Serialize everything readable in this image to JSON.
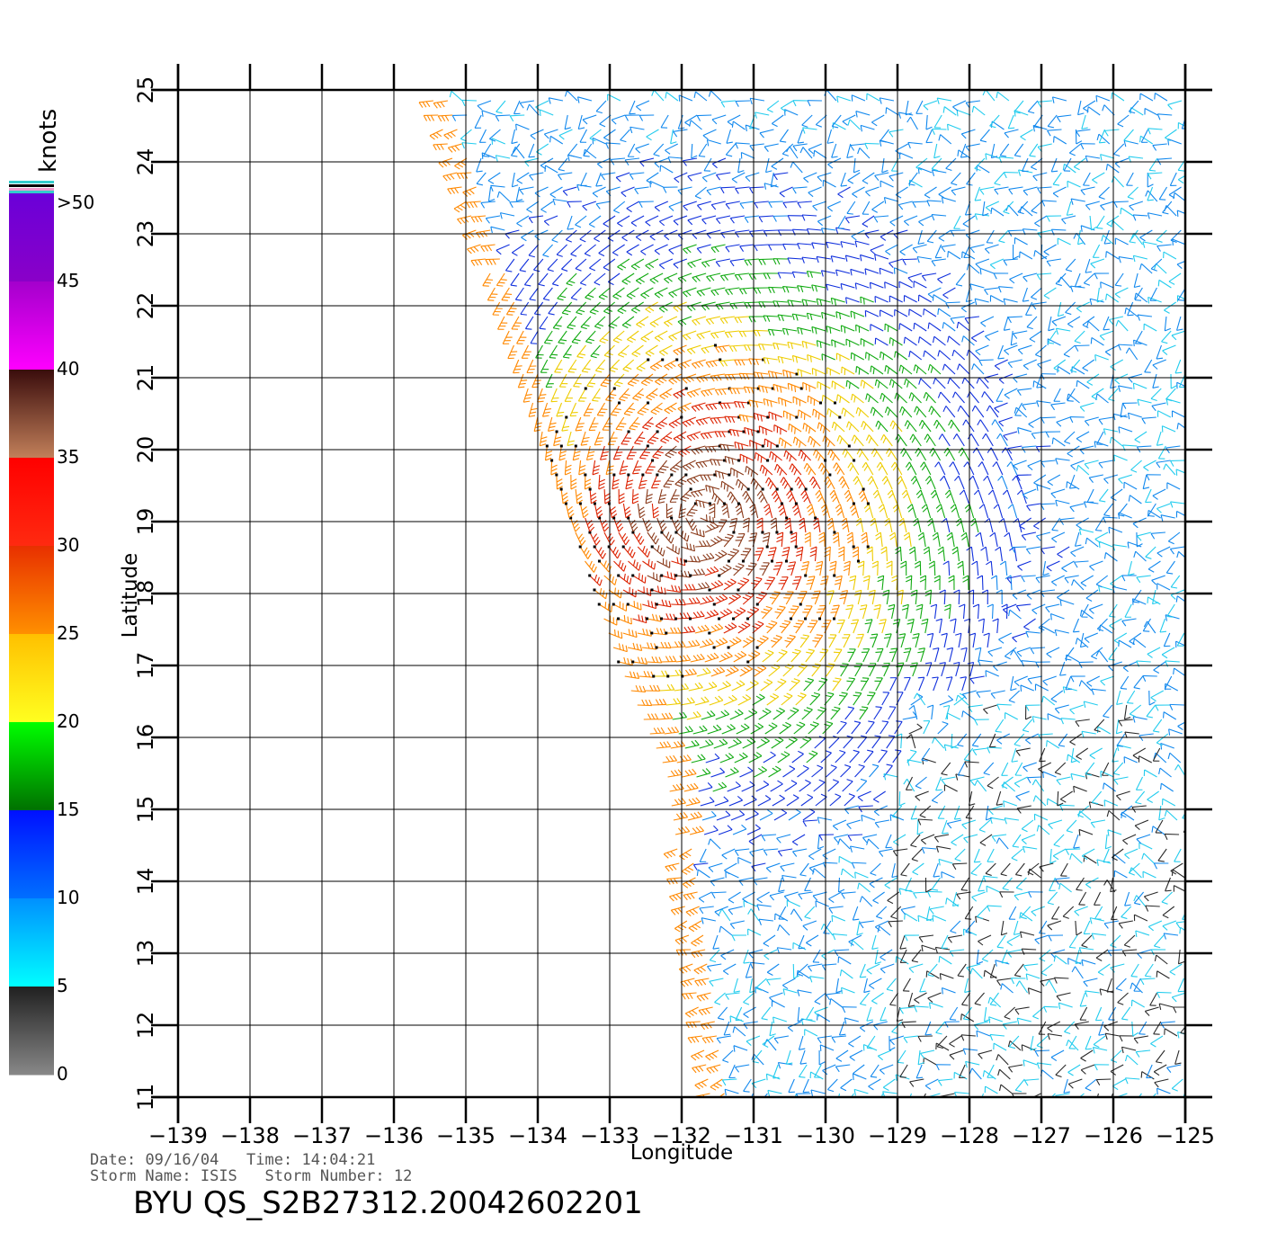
{
  "map": {
    "x_axis_label": "Longitude",
    "y_axis_label": "Latitude",
    "lon_range": [
      -139,
      -125
    ],
    "lat_range": [
      11,
      25
    ],
    "lon_ticks": [
      "−139",
      "−138",
      "−137",
      "−136",
      "−135",
      "−134",
      "−133",
      "−132",
      "−131",
      "−130",
      "−129",
      "−128",
      "−127",
      "−126",
      "−125"
    ],
    "lat_ticks": [
      "11",
      "12",
      "13",
      "14",
      "15",
      "16",
      "17",
      "18",
      "19",
      "20",
      "21",
      "22",
      "23",
      "24",
      "25"
    ],
    "grid": true
  },
  "legend": {
    "unit_label": "knots",
    "labels": [
      ">50",
      "45",
      "40",
      "35",
      "30",
      "25",
      "20",
      "15",
      "10",
      "5",
      "0"
    ],
    "bands": [
      {
        "from": 45,
        "to": 50,
        "top": "#6a00d8",
        "bottom": "#8a00c8"
      },
      {
        "from": 40,
        "to": 45,
        "top": "#a400cc",
        "bottom": "#ff00ff"
      },
      {
        "from": 35,
        "to": 40,
        "top": "#3a0c0c",
        "bottom": "#c2805a"
      },
      {
        "from": 30,
        "to": 35,
        "top": "#ff0000",
        "bottom": "#ff2a10"
      },
      {
        "from": 25,
        "to": 30,
        "top": "#e83000",
        "bottom": "#ff9000"
      },
      {
        "from": 20,
        "to": 25,
        "top": "#ffc000",
        "bottom": "#ffff20"
      },
      {
        "from": 15,
        "to": 20,
        "top": "#00ff00",
        "bottom": "#007000"
      },
      {
        "from": 10,
        "to": 15,
        "top": "#0010ff",
        "bottom": "#0070ff"
      },
      {
        "from": 5,
        "to": 10,
        "top": "#0090ff",
        "bottom": "#00ffff"
      },
      {
        "from": 0,
        "to": 5,
        "top": "#202020",
        "bottom": "#888888"
      }
    ]
  },
  "wind_field": {
    "swath_left_edge": [
      [
        -135.5,
        25
      ],
      [
        -132.9,
        17.1
      ],
      [
        -132.2,
        15.5
      ],
      [
        -131.6,
        11
      ]
    ],
    "storm_center": [
      -131.7,
      19.1
    ],
    "max_speed_knots": 40,
    "rain_flagged": true
  },
  "footer": {
    "date_label": "Date:",
    "date": "09/16/04",
    "time_label": "Time:",
    "time": "14:04:21",
    "storm_name_label": "Storm Name:",
    "storm_name": "ISIS",
    "storm_number_label": "Storm Number:",
    "storm_number": "12",
    "product": "BYU QS_S2B27312.20042602201"
  }
}
